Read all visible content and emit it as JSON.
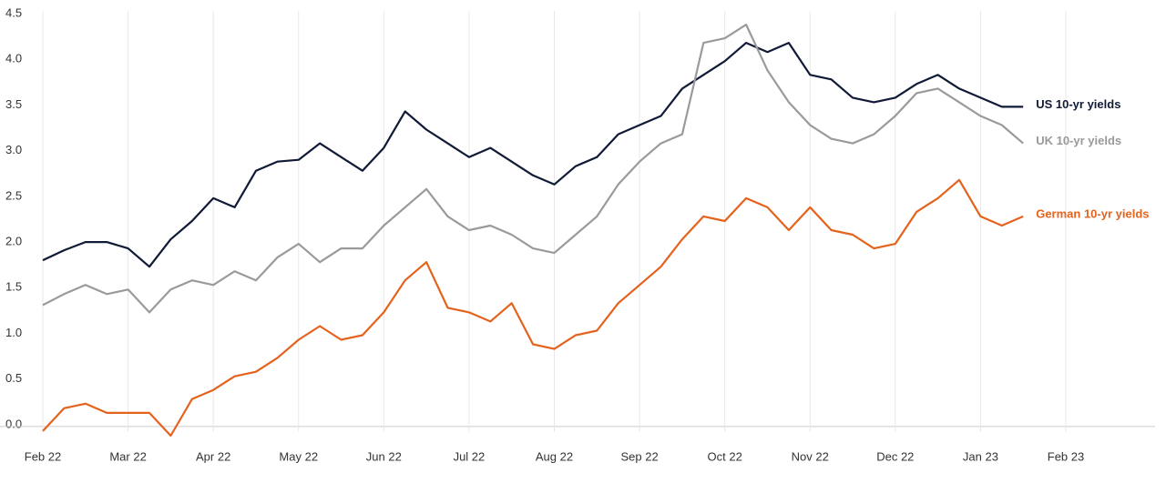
{
  "chart_data": {
    "type": "line",
    "categories": [
      "Feb 22",
      null,
      null,
      null,
      "Mar 22",
      null,
      null,
      null,
      "Apr 22",
      null,
      null,
      null,
      "May 22",
      null,
      null,
      null,
      "Jun 22",
      null,
      null,
      null,
      "Jul 22",
      null,
      null,
      null,
      "Aug 22",
      null,
      null,
      null,
      "Sep 22",
      null,
      null,
      null,
      "Oct 22",
      null,
      null,
      null,
      "Nov 22",
      null,
      null,
      null,
      "Dec 22",
      null,
      null,
      null,
      "Jan 23",
      null,
      null,
      null,
      "Feb 23"
    ],
    "series": [
      {
        "name": "US 10-yr yields",
        "color": "#101a36",
        "values": [
          1.82,
          1.93,
          2.02,
          2.02,
          1.95,
          1.75,
          2.05,
          2.25,
          2.5,
          2.4,
          2.8,
          2.9,
          2.92,
          3.1,
          2.95,
          2.8,
          3.05,
          3.45,
          3.25,
          3.1,
          2.95,
          3.05,
          2.9,
          2.75,
          2.65,
          2.85,
          2.95,
          3.2,
          3.3,
          3.4,
          3.7,
          3.85,
          4.0,
          4.2,
          4.1,
          4.2,
          3.85,
          3.8,
          3.6,
          3.55,
          3.6,
          3.75,
          3.85,
          3.7,
          3.6,
          3.5,
          3.5,
          null,
          null
        ]
      },
      {
        "name": "UK 10-yr yields",
        "color": "#9a9a9a",
        "values": [
          1.33,
          1.45,
          1.55,
          1.45,
          1.5,
          1.25,
          1.5,
          1.6,
          1.55,
          1.7,
          1.6,
          1.85,
          2.0,
          1.8,
          1.95,
          1.95,
          2.2,
          2.4,
          2.6,
          2.3,
          2.15,
          2.2,
          2.1,
          1.95,
          1.9,
          2.1,
          2.3,
          2.65,
          2.9,
          3.1,
          3.2,
          4.2,
          4.25,
          4.4,
          3.9,
          3.55,
          3.3,
          3.15,
          3.1,
          3.2,
          3.4,
          3.65,
          3.7,
          3.55,
          3.4,
          3.3,
          3.1,
          null,
          null
        ]
      },
      {
        "name": "German 10-yr yields",
        "color": "#e5621c",
        "values": [
          -0.05,
          0.2,
          0.25,
          0.15,
          0.15,
          0.15,
          -0.1,
          0.3,
          0.4,
          0.55,
          0.6,
          0.75,
          0.95,
          1.1,
          0.95,
          1.0,
          1.25,
          1.6,
          1.8,
          1.3,
          1.25,
          1.15,
          1.35,
          0.9,
          0.85,
          1.0,
          1.05,
          1.35,
          1.55,
          1.75,
          2.05,
          2.3,
          2.25,
          2.5,
          2.4,
          2.15,
          2.4,
          2.15,
          2.1,
          1.95,
          2.0,
          2.35,
          2.5,
          2.7,
          2.3,
          2.2,
          2.3,
          null,
          null
        ]
      }
    ],
    "ylim": [
      -0.2,
      4.55
    ],
    "yticks": [
      {
        "value": 0,
        "label": "0.0"
      },
      0.5,
      {
        "value": 1,
        "label": "1.0"
      },
      1.5,
      {
        "value": 2,
        "label": "2.0"
      },
      2.5,
      {
        "value": 3,
        "label": "3.0"
      },
      3.5,
      {
        "value": 4,
        "label": "4.0"
      },
      4.5
    ],
    "grid": true
  }
}
